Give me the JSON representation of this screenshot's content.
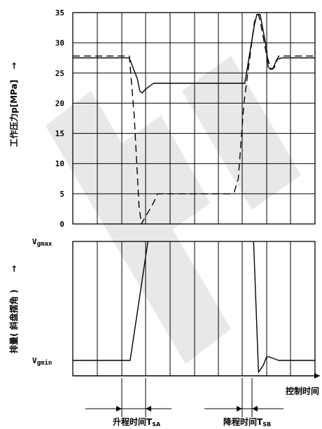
{
  "chart_data": [
    {
      "type": "line",
      "ylabel": "工作压力p[MPa]",
      "ylabel_arrow": "→",
      "ylim": [
        0,
        35
      ],
      "yticks": [
        "0",
        "5",
        "10",
        "15",
        "20",
        "25",
        "30",
        "35"
      ],
      "grid": true,
      "series": [
        {
          "style": "solid",
          "x": [
            0,
            7.0,
            8.0,
            8.3,
            8.6,
            9.0,
            10.0,
            20.0,
            21.3,
            22.5,
            22.8,
            23.2,
            24.0,
            24.2,
            24.5,
            24.8,
            25.3,
            26.0,
            30.0
          ],
          "y": [
            27.5,
            27.5,
            24.0,
            22.0,
            21.7,
            22.3,
            23.3,
            23.3,
            23.3,
            33.0,
            34.7,
            34.7,
            29.0,
            26.0,
            25.6,
            25.8,
            27.3,
            27.5,
            27.5
          ]
        },
        {
          "style": "dashed",
          "x": [
            0,
            7.0,
            7.6,
            8.2,
            8.5,
            10.0,
            10.5,
            19.5,
            20.0,
            20.5,
            21.2,
            22.5,
            23.0,
            23.3,
            24.0,
            24.5,
            24.7,
            25.0,
            25.5,
            30.0
          ],
          "y": [
            27.8,
            27.8,
            18.0,
            3.0,
            0.0,
            3.5,
            5.0,
            5.0,
            5.3,
            7.5,
            20.0,
            33.5,
            34.7,
            33.0,
            28.0,
            25.8,
            25.6,
            26.0,
            27.8,
            27.8
          ]
        }
      ]
    },
    {
      "type": "line",
      "ylabel": "排量( 斜盘摆角 )",
      "ylabel_arrow": "→",
      "yticks": [
        "Vgmax",
        "Vgmin"
      ],
      "ylim": [
        0,
        1
      ],
      "grid": true,
      "series": [
        {
          "style": "solid",
          "x": [
            0,
            7.1,
            9.3
          ],
          "y": [
            0,
            0,
            1
          ]
        },
        {
          "style": "solid",
          "x": [
            22.4,
            23.0,
            23.6,
            24.0,
            24.3,
            25.5,
            30.0
          ],
          "y": [
            1,
            -0.1,
            -0.04,
            0.03,
            0.03,
            0.0,
            0.0
          ]
        }
      ]
    }
  ],
  "labels": {
    "control_time": "控制时间",
    "rise_time": "升程时间T",
    "rise_sub": "SA",
    "fall_time": "降程时间T",
    "fall_sub": "SB"
  }
}
